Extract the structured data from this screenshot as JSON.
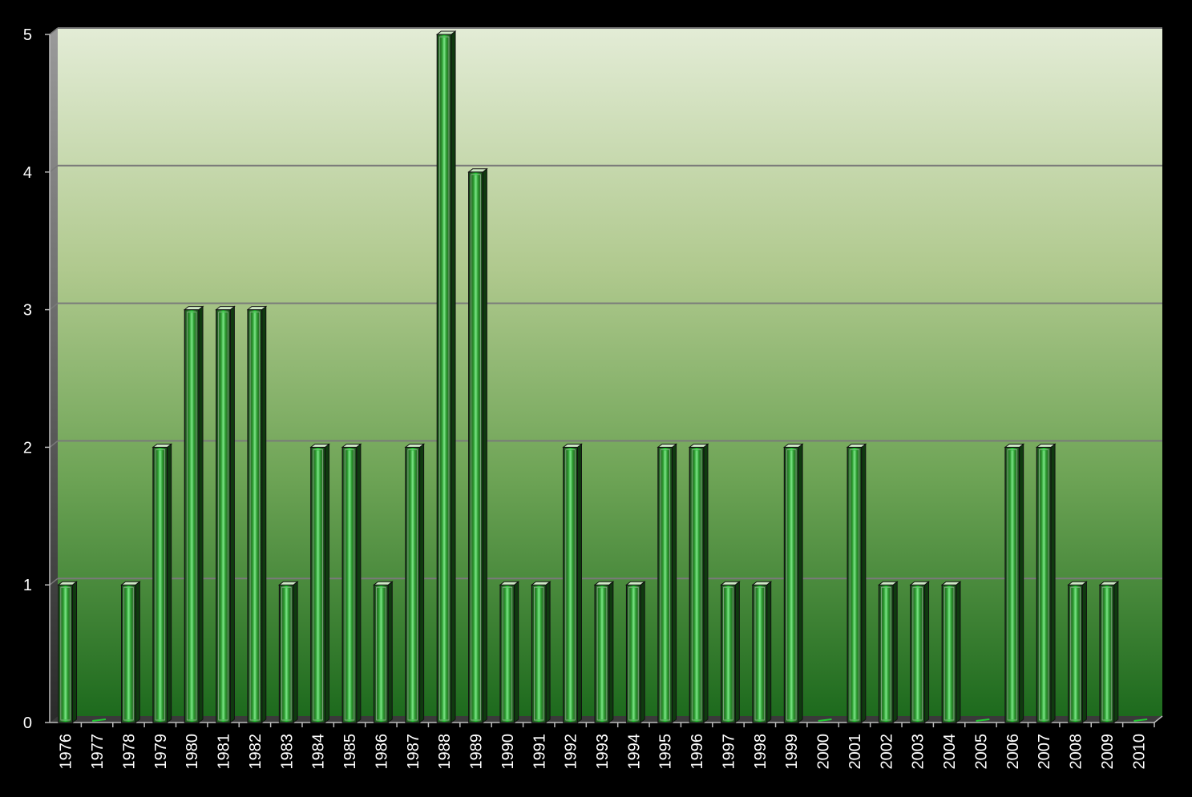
{
  "chart_data": {
    "type": "bar",
    "title": "",
    "xlabel": "",
    "ylabel": "",
    "ylim": [
      0,
      5
    ],
    "yticks": [
      0,
      1,
      2,
      3,
      4,
      5
    ],
    "grid": true,
    "categories": [
      "1976",
      "1977",
      "1978",
      "1979",
      "1980",
      "1981",
      "1982",
      "1983",
      "1984",
      "1985",
      "1986",
      "1987",
      "1988",
      "1989",
      "1990",
      "1991",
      "1992",
      "1993",
      "1994",
      "1995",
      "1996",
      "1997",
      "1998",
      "1999",
      "2000",
      "2001",
      "2002",
      "2003",
      "2004",
      "2005",
      "2006",
      "2007",
      "2008",
      "2009",
      "2010"
    ],
    "values": [
      1,
      0,
      1,
      2,
      3,
      3,
      3,
      1,
      2,
      2,
      1,
      2,
      5,
      4,
      1,
      1,
      2,
      1,
      1,
      2,
      2,
      1,
      1,
      2,
      0,
      2,
      1,
      1,
      1,
      0,
      2,
      2,
      1,
      1,
      0
    ],
    "colors": {
      "background": "#000000",
      "plot_top": "#e3ecd6",
      "plot_bottom": "#1d6a1d",
      "bar_accent": "#22cc33",
      "bar_outline": "#111111",
      "grid": "#7a7a7a",
      "text": "#ffffff"
    }
  }
}
